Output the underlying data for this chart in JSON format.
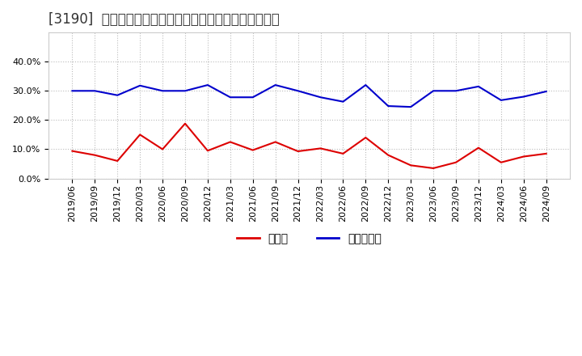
{
  "title": "[3190]  現須金、有利子負債の総資産に対する比率の推移",
  "x_labels": [
    "2019/06",
    "2019/09",
    "2019/12",
    "2020/03",
    "2020/06",
    "2020/09",
    "2020/12",
    "2021/03",
    "2021/06",
    "2021/09",
    "2021/12",
    "2022/03",
    "2022/06",
    "2022/09",
    "2022/12",
    "2023/03",
    "2023/06",
    "2023/09",
    "2023/12",
    "2024/03",
    "2024/06",
    "2024/09"
  ],
  "cash": [
    0.094,
    0.08,
    0.06,
    0.15,
    0.1,
    0.188,
    0.095,
    0.125,
    0.097,
    0.125,
    0.093,
    0.103,
    0.085,
    0.14,
    0.08,
    0.045,
    0.035,
    0.055,
    0.105,
    0.055,
    0.075,
    0.085
  ],
  "debt": [
    0.3,
    0.3,
    0.285,
    0.318,
    0.3,
    0.3,
    0.32,
    0.278,
    0.278,
    0.32,
    0.3,
    0.278,
    0.263,
    0.32,
    0.248,
    0.245,
    0.3,
    0.3,
    0.315,
    0.268,
    0.28,
    0.298
  ],
  "cash_color": "#dd0000",
  "debt_color": "#0000cc",
  "background_color": "#ffffff",
  "plot_bg_color": "#ffffff",
  "grid_color": "#bbbbbb",
  "ylim": [
    0.0,
    0.5
  ],
  "yticks": [
    0.0,
    0.1,
    0.2,
    0.3,
    0.4
  ],
  "legend_cash": "現須金",
  "legend_debt": "有利子負債",
  "title_fontsize": 12,
  "tick_fontsize": 8,
  "legend_fontsize": 10
}
